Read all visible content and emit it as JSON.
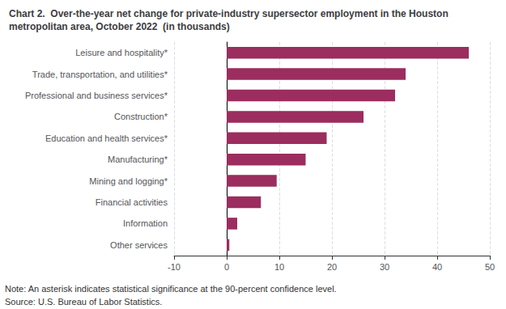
{
  "chart_data": {
    "type": "bar",
    "orientation": "horizontal",
    "title": "Chart 2.  Over-the-year net change for private-industry supersector employment in the Houston\nmetropolitan area, October 2022  (in thousands)",
    "categories": [
      "Other services",
      "Information",
      "Financial activities",
      "Mining and logging*",
      "Manufacturing*",
      "Education and health services*",
      "Construction*",
      "Professional and business services*",
      "Trade, transportation, and utilities*",
      "Leisure and hospitality*"
    ],
    "values": [
      0.5,
      2.0,
      6.5,
      9.5,
      15.0,
      19.0,
      26.0,
      32.0,
      34.0,
      46.0
    ],
    "color": "#9b2d5f",
    "xlim": [
      -10,
      50
    ],
    "xticks": [
      -10,
      0,
      10,
      20,
      30,
      40,
      50
    ],
    "grid": true,
    "annotations": [
      "Note: An asterisk indicates statistical significance at the 90-percent confidence level.",
      "Source: U.S. Bureau of Labor Statistics."
    ]
  }
}
